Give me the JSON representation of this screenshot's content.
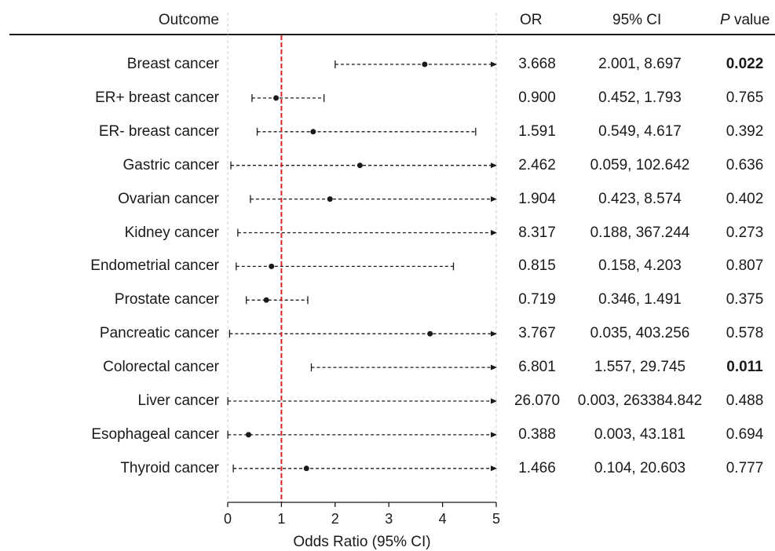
{
  "columns": {
    "outcome": "Outcome",
    "or": "OR",
    "ci": "95% CI",
    "p_italic": "P",
    "p_rest": " value"
  },
  "chart_data": {
    "type": "forest",
    "xlabel": "Odds Ratio (95% CI)",
    "xlim": [
      0,
      5
    ],
    "xticks": [
      0,
      1,
      2,
      3,
      4,
      5
    ],
    "reference_line": 1,
    "reference_color": "#d7261e",
    "point_color": "#1a1a1a",
    "rows": [
      {
        "outcome": "Breast cancer",
        "or": 3.668,
        "ci_low": 2.001,
        "ci_high": 8.697,
        "or_text": "3.668",
        "ci_text": "2.001, 8.697",
        "p_text": "0.022",
        "significant": true
      },
      {
        "outcome": "ER+ breast cancer",
        "or": 0.9,
        "ci_low": 0.452,
        "ci_high": 1.793,
        "or_text": "0.900",
        "ci_text": "0.452, 1.793",
        "p_text": "0.765",
        "significant": false
      },
      {
        "outcome": "ER- breast cancer",
        "or": 1.591,
        "ci_low": 0.549,
        "ci_high": 4.617,
        "or_text": "1.591",
        "ci_text": "0.549, 4.617",
        "p_text": "0.392",
        "significant": false
      },
      {
        "outcome": "Gastric cancer",
        "or": 2.462,
        "ci_low": 0.059,
        "ci_high": 102.642,
        "or_text": "2.462",
        "ci_text": "0.059, 102.642",
        "p_text": "0.636",
        "significant": false
      },
      {
        "outcome": "Ovarian cancer",
        "or": 1.904,
        "ci_low": 0.423,
        "ci_high": 8.574,
        "or_text": "1.904",
        "ci_text": "0.423, 8.574",
        "p_text": "0.402",
        "significant": false
      },
      {
        "outcome": "Kidney cancer",
        "or": 8.317,
        "ci_low": 0.188,
        "ci_high": 367.244,
        "or_text": "8.317",
        "ci_text": "0.188, 367.244",
        "p_text": "0.273",
        "significant": false
      },
      {
        "outcome": "Endometrial cancer",
        "or": 0.815,
        "ci_low": 0.158,
        "ci_high": 4.203,
        "or_text": "0.815",
        "ci_text": "0.158, 4.203",
        "p_text": "0.807",
        "significant": false
      },
      {
        "outcome": "Prostate cancer",
        "or": 0.719,
        "ci_low": 0.346,
        "ci_high": 1.491,
        "or_text": "0.719",
        "ci_text": "0.346, 1.491",
        "p_text": "0.375",
        "significant": false
      },
      {
        "outcome": "Pancreatic cancer",
        "or": 3.767,
        "ci_low": 0.035,
        "ci_high": 403.256,
        "or_text": "3.767",
        "ci_text": "0.035, 403.256",
        "p_text": "0.578",
        "significant": false
      },
      {
        "outcome": "Colorectal cancer",
        "or": 6.801,
        "ci_low": 1.557,
        "ci_high": 29.745,
        "or_text": "6.801",
        "ci_text": "1.557, 29.745",
        "p_text": "0.011",
        "significant": true
      },
      {
        "outcome": "Liver cancer",
        "or": 26.07,
        "ci_low": 0.003,
        "ci_high": 263384.842,
        "or_text": "26.070",
        "ci_text": "0.003, 263384.842",
        "p_text": "0.488",
        "significant": false
      },
      {
        "outcome": "Esophageal cancer",
        "or": 0.388,
        "ci_low": 0.003,
        "ci_high": 43.181,
        "or_text": "0.388",
        "ci_text": "0.003, 43.181",
        "p_text": "0.694",
        "significant": false
      },
      {
        "outcome": "Thyroid cancer",
        "or": 1.466,
        "ci_low": 0.104,
        "ci_high": 20.603,
        "or_text": "1.466",
        "ci_text": "0.104, 20.603",
        "p_text": "0.777",
        "significant": false
      }
    ]
  }
}
